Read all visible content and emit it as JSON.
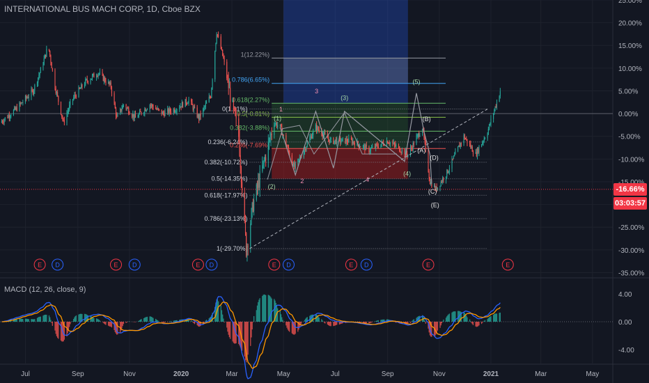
{
  "header": {
    "title": "INTERNATIONAL BUS MACH CORP, 1D, Cboe BZX",
    "macd_title": "MACD (12, 26, close, 9)"
  },
  "price_tag": {
    "value": "-16.66%",
    "countdown": "03:03:57",
    "color": "#f23645"
  },
  "colors": {
    "background": "#131722",
    "grid": "#1e222d",
    "text": "#b2b5be",
    "up": "#26a69a",
    "down": "#ef5350",
    "macd_line": "#2962ff",
    "signal_line": "#ff9800",
    "fib_red": "#ef5350",
    "fib_green": "#4caf50",
    "fib_blue": "#2196f3",
    "wave_green": "#a5d6a7",
    "wave_white": "#e0e0e0",
    "wave_pink": "#f48fb1"
  },
  "chart_data": [
    {
      "type": "candlestick",
      "title": "INTERNATIONAL BUS MACH CORP, 1D, Cboe BZX",
      "y_unit": "%",
      "ylim": [
        -36,
        25
      ],
      "y_ticks": [
        "25.00%",
        "20.00%",
        "15.00%",
        "10.00%",
        "5.00%",
        "0.00%",
        "-5.00%",
        "-10.00%",
        "-15.00%",
        "-20.00%",
        "-25.00%",
        "-30.00%",
        "-35.00%"
      ],
      "y_tick_values": [
        25,
        20,
        15,
        10,
        5,
        0,
        -5,
        -10,
        -15,
        -20,
        -25,
        -30,
        -35
      ],
      "x_ticks": [
        "Jul",
        "Sep",
        "Nov",
        "2020",
        "Mar",
        "May",
        "Jul",
        "Sep",
        "Nov",
        "2021",
        "Mar",
        "May"
      ],
      "x_tick_dates": [
        "2019-07-01",
        "2019-09-01",
        "2019-11-01",
        "2020-01-01",
        "2020-03-01",
        "2020-05-01",
        "2020-07-01",
        "2020-09-01",
        "2020-11-01",
        "2021-01-01",
        "2021-03-01",
        "2021-05-01"
      ],
      "price_path": {
        "dates": [
          "2019-06-01",
          "2019-06-20",
          "2019-07-10",
          "2019-07-20",
          "2019-07-28",
          "2019-08-05",
          "2019-08-15",
          "2019-08-25",
          "2019-09-10",
          "2019-09-25",
          "2019-10-10",
          "2019-10-17",
          "2019-10-25",
          "2019-11-08",
          "2019-11-25",
          "2019-12-10",
          "2019-12-25",
          "2020-01-10",
          "2020-01-22",
          "2020-02-05",
          "2020-02-12",
          "2020-02-20",
          "2020-02-28",
          "2020-03-09",
          "2020-03-18",
          "2020-03-26",
          "2020-04-06",
          "2020-04-17",
          "2020-04-20",
          "2020-04-27",
          "2020-05-14",
          "2020-06-08",
          "2020-06-25",
          "2020-07-20",
          "2020-08-10",
          "2020-09-01",
          "2020-09-25",
          "2020-10-12",
          "2020-10-21",
          "2020-10-28",
          "2020-11-10",
          "2020-11-30",
          "2020-12-14",
          "2020-12-28",
          "2021-01-12"
        ],
        "values": [
          -2,
          1,
          5,
          10,
          15,
          6,
          -2,
          3,
          7,
          9,
          6,
          -1,
          2,
          -1,
          2,
          0,
          1,
          3,
          -1,
          4,
          18,
          12,
          4,
          -5,
          -30,
          -20,
          -12,
          -4,
          -2,
          -3,
          -12,
          -3,
          -6,
          -6,
          -8,
          -6,
          -9,
          -3,
          -15,
          -16.66,
          -13,
          -5,
          -9,
          -4,
          5
        ]
      },
      "fibonacci_retracement_low": {
        "levels": [
          "0(1.01%)",
          "0.236(-6.24%)",
          "0.382(-10.72%)",
          "0.5(-14.35%)",
          "0.618(-17.97%)",
          "0.786(-23.13%)",
          "1(-29.70%)"
        ],
        "values": [
          1.01,
          -6.24,
          -10.72,
          -14.35,
          -17.97,
          -23.13,
          -29.7
        ]
      },
      "fibonacci_retracement_high": {
        "levels": [
          "1(12.22%)",
          "0.786(6.65%)",
          "0.618(2.27%)",
          "0.5(-0.81%)",
          "0.382(-3.88%)",
          "0.236(-7.69%)"
        ],
        "values": [
          12.22,
          6.65,
          2.27,
          -0.81,
          -3.88,
          -7.69
        ],
        "colors": [
          "#9598a1",
          "#42a5f5",
          "#66bb6a",
          "#8bc34a",
          "#66bb6a",
          "#ef5350"
        ]
      },
      "wave_labels": [
        "(1)",
        "(2)",
        "(3)",
        "(4)",
        "(5)",
        "1",
        "2",
        "3",
        "4",
        "(A)",
        "(B)",
        "(C)",
        "(D)",
        "(E)"
      ],
      "event_markers": [
        "E",
        "D",
        "E",
        "D",
        "E",
        "D",
        "E",
        "D",
        "E",
        "D",
        "E",
        "E"
      ],
      "event_types": [
        "earnings",
        "dividend",
        "earnings",
        "dividend",
        "earnings",
        "dividend",
        "earnings",
        "dividend",
        "earnings",
        "dividend",
        "earnings",
        "earnings"
      ]
    },
    {
      "type": "line",
      "title": "MACD (12, 26, close, 9)",
      "ylim": [
        -6,
        6
      ],
      "y_ticks": [
        "4.00",
        "0.00",
        "-4.00"
      ],
      "y_tick_values": [
        4,
        0,
        -4
      ],
      "series": [
        {
          "name": "MACD",
          "color": "#2962ff"
        },
        {
          "name": "Signal",
          "color": "#ff9800"
        }
      ]
    }
  ]
}
